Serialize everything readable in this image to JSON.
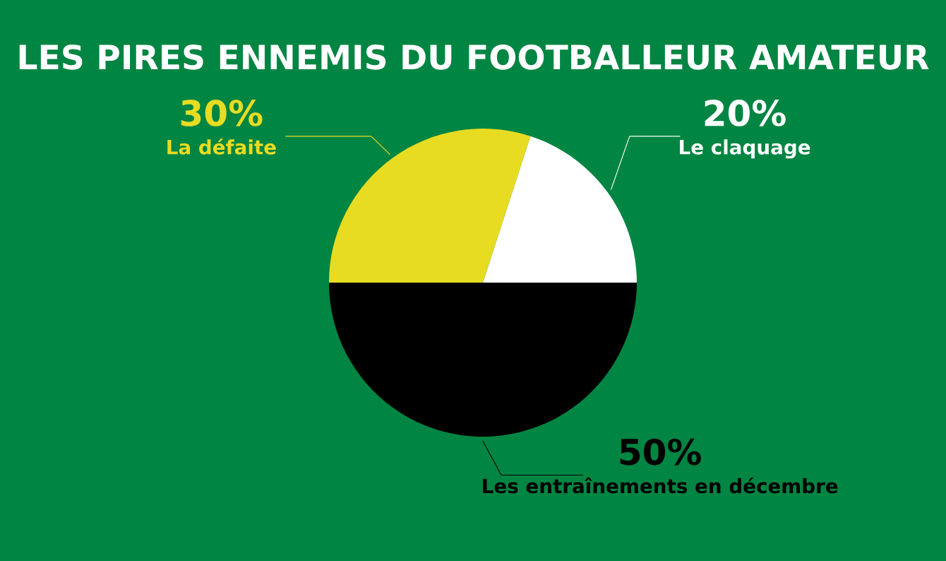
{
  "chart_data": {
    "type": "pie",
    "title": "LES PIRES ENNEMIS DU FOOTBALLEUR AMATEUR",
    "categories": [
      "Le claquage",
      "La défaite",
      "Les entraînements en décembre"
    ],
    "values": [
      20,
      30,
      50
    ],
    "value_labels": [
      "20%",
      "30%",
      "50%"
    ],
    "colors": [
      "#ffffff",
      "#e8dc22",
      "#000000"
    ],
    "legend": false
  }
}
